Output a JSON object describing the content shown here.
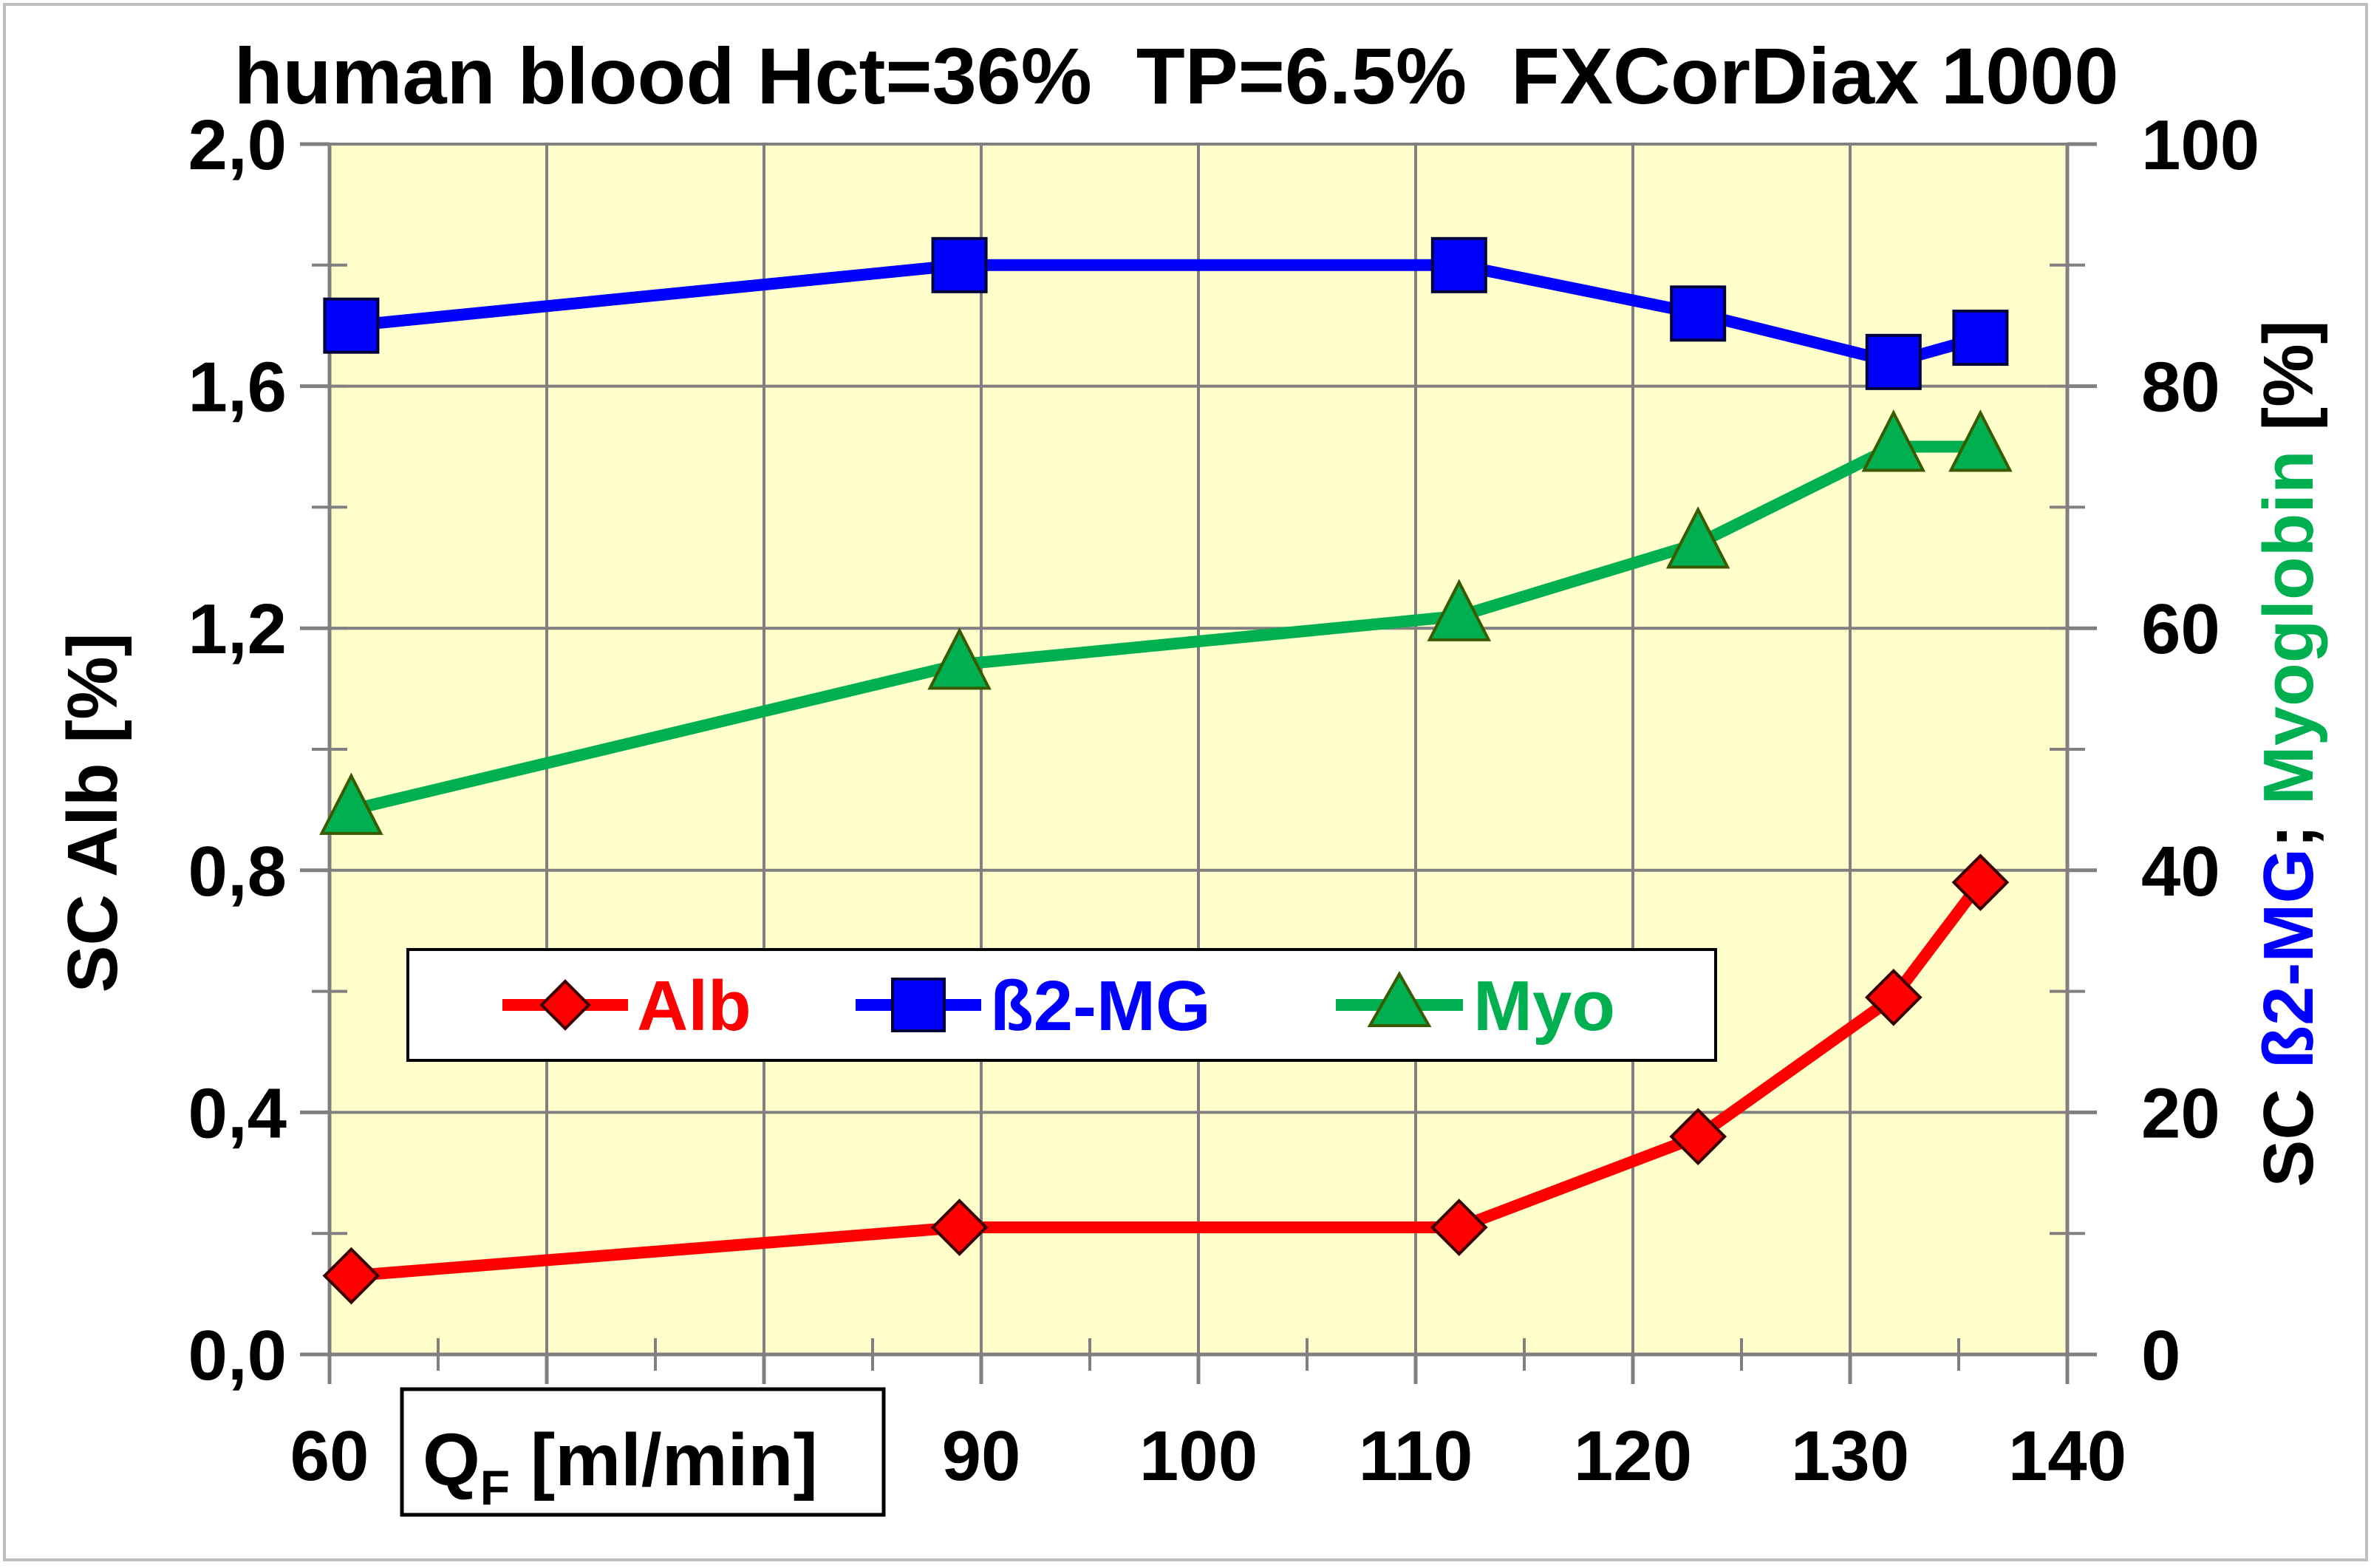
{
  "chart_data": {
    "type": "line",
    "title": "human blood Hct=36%  TP=6.5%  FXCorDiax 1000",
    "xlabel_main": "Q",
    "xlabel_sub": "F",
    "xlabel_rest": " [ml/min]",
    "ylabel_left": "SC Alb [%]",
    "ylabel_right_prefix": "SC ",
    "ylabel_right_b2mg": "ß2-MG",
    "ylabel_right_sep": "; ",
    "ylabel_right_myo": "Myoglobin",
    "ylabel_right_suffix": " [%]",
    "xlim": [
      60,
      140
    ],
    "ylim_left": [
      0,
      2.0
    ],
    "ylim_right": [
      0,
      100
    ],
    "x_ticks": [
      60,
      70,
      80,
      90,
      100,
      110,
      120,
      130,
      140
    ],
    "x_tick_labels": [
      "60",
      "",
      "",
      "90",
      "100",
      "110",
      "120",
      "130",
      "140"
    ],
    "y_left_ticks": [
      0,
      0.4,
      0.8,
      1.2,
      1.6,
      2.0
    ],
    "y_left_tick_labels": [
      "0,0",
      "0,4",
      "0,8",
      "1,2",
      "1,6",
      "2,0"
    ],
    "y_right_ticks": [
      0,
      20,
      40,
      60,
      80,
      100
    ],
    "y_right_tick_labels": [
      "0",
      "20",
      "40",
      "60",
      "80",
      "100"
    ],
    "grid": true,
    "legend_position": "lower-left",
    "plot_background": "#ffffcc",
    "series": [
      {
        "name": "Alb",
        "axis": "left",
        "color": "#ff0000",
        "marker": "diamond",
        "x": [
          61,
          89,
          112,
          123,
          132,
          136
        ],
        "y": [
          0.13,
          0.21,
          0.21,
          0.36,
          0.59,
          0.78
        ]
      },
      {
        "name": "ß2-MG",
        "axis": "right",
        "color": "#0000ff",
        "marker": "square",
        "x": [
          61,
          89,
          112,
          123,
          132,
          136
        ],
        "y": [
          85,
          90,
          90,
          86,
          82,
          84
        ]
      },
      {
        "name": "Myo",
        "axis": "right",
        "color": "#00b050",
        "marker": "triangle",
        "x": [
          61,
          89,
          112,
          123,
          132,
          136
        ],
        "y": [
          45,
          57,
          61,
          67,
          75,
          75
        ]
      }
    ]
  }
}
